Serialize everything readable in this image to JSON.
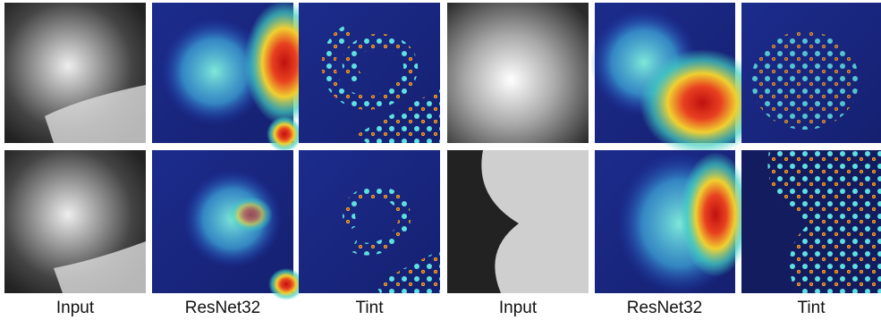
{
  "columns": [
    "Input",
    "ResNet32",
    "Tint",
    "Input",
    "ResNet32",
    "Tint"
  ]
}
